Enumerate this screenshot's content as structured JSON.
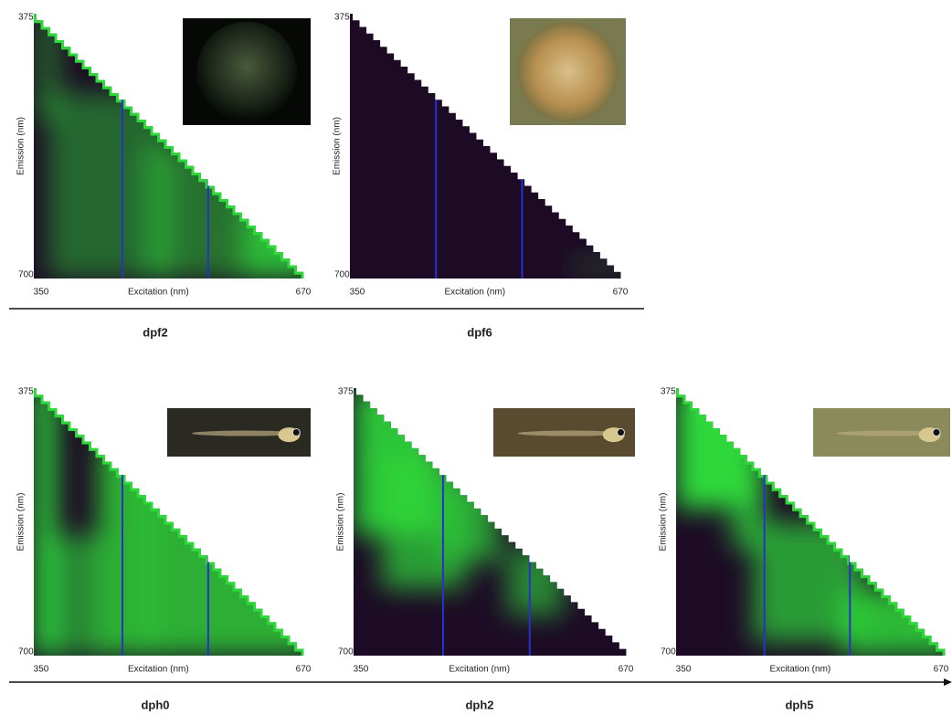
{
  "panels": [
    {
      "label": "dpf2",
      "x_label": "Excitation (nm)",
      "y_label": "Emission (nm)",
      "x_ticks": [
        "350",
        "670"
      ],
      "y_ticks": [
        "375",
        "700"
      ]
    },
    {
      "label": "dpf6",
      "x_label": "Excitation (nm)",
      "y_label": "Emission (nm)",
      "x_ticks": [
        "350",
        "670"
      ],
      "y_ticks": [
        "375",
        "700"
      ]
    },
    {
      "label": "dph0",
      "x_label": "Excitation (nm)",
      "y_label": "Emission (nm)",
      "x_ticks": [
        "350",
        "670"
      ],
      "y_ticks": [
        "375",
        "700"
      ]
    },
    {
      "label": "dph2",
      "x_label": "Excitation (nm)",
      "y_label": "Emission (nm)",
      "x_ticks": [
        "350",
        "670"
      ],
      "y_ticks": [
        "375",
        "700"
      ]
    },
    {
      "label": "dph5",
      "x_label": "Excitation (nm)",
      "y_label": "Emission (nm)",
      "x_ticks": [
        "350",
        "670"
      ],
      "y_ticks": [
        "375",
        "700"
      ]
    }
  ]
}
